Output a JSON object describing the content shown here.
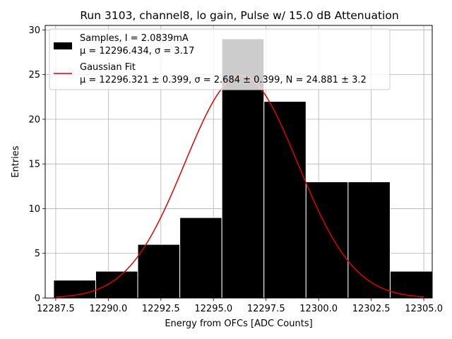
{
  "chart_data": {
    "type": "bar",
    "title": "Run 3103, channel8, lo gain, Pulse w/ 15.0 dB Attenuation",
    "xlabel": "Energy from OFCs [ADC Counts]",
    "ylabel": "Entries",
    "xlim": [
      12287.0,
      12305.4
    ],
    "ylim": [
      0,
      30.5
    ],
    "grid": true,
    "legend_position": "top-left",
    "xticks": [
      12287.5,
      12290.0,
      12292.5,
      12295.0,
      12297.5,
      12300.0,
      12302.5,
      12305.0
    ],
    "xtick_labels": [
      "12287.5",
      "12290.0",
      "12292.5",
      "12295.0",
      "12297.5",
      "12300.0",
      "12302.5",
      "12305.0"
    ],
    "yticks": [
      0,
      5,
      10,
      15,
      20,
      25,
      30
    ],
    "ytick_labels": [
      "0",
      "5",
      "10",
      "15",
      "20",
      "25",
      "30"
    ],
    "histogram": {
      "name": "Samples, I = 2.0839mA",
      "stats": "μ = 12296.434, σ = 3.17",
      "color": "#000000",
      "bins": [
        {
          "left": 12287.4,
          "right": 12289.4,
          "count": 2
        },
        {
          "left": 12289.4,
          "right": 12291.4,
          "count": 3
        },
        {
          "left": 12291.4,
          "right": 12293.4,
          "count": 6
        },
        {
          "left": 12293.4,
          "right": 12295.4,
          "count": 9
        },
        {
          "left": 12295.4,
          "right": 12297.4,
          "count": 29
        },
        {
          "left": 12297.4,
          "right": 12299.4,
          "count": 22
        },
        {
          "left": 12299.4,
          "right": 12301.4,
          "count": 13
        },
        {
          "left": 12301.4,
          "right": 12303.4,
          "count": 13
        },
        {
          "left": 12303.4,
          "right": 12305.4,
          "count": 3
        }
      ]
    },
    "fit": {
      "name": "Gaussian Fit",
      "stats": "μ = 12296.321 ± 0.399, σ = 2.684 ± 0.399, N = 24.881 ± 3.2",
      "color": "#e00000",
      "mu": 12296.321,
      "sigma": 2.684,
      "N": 24.881,
      "x_range": [
        12287.5,
        12305.0
      ]
    }
  }
}
